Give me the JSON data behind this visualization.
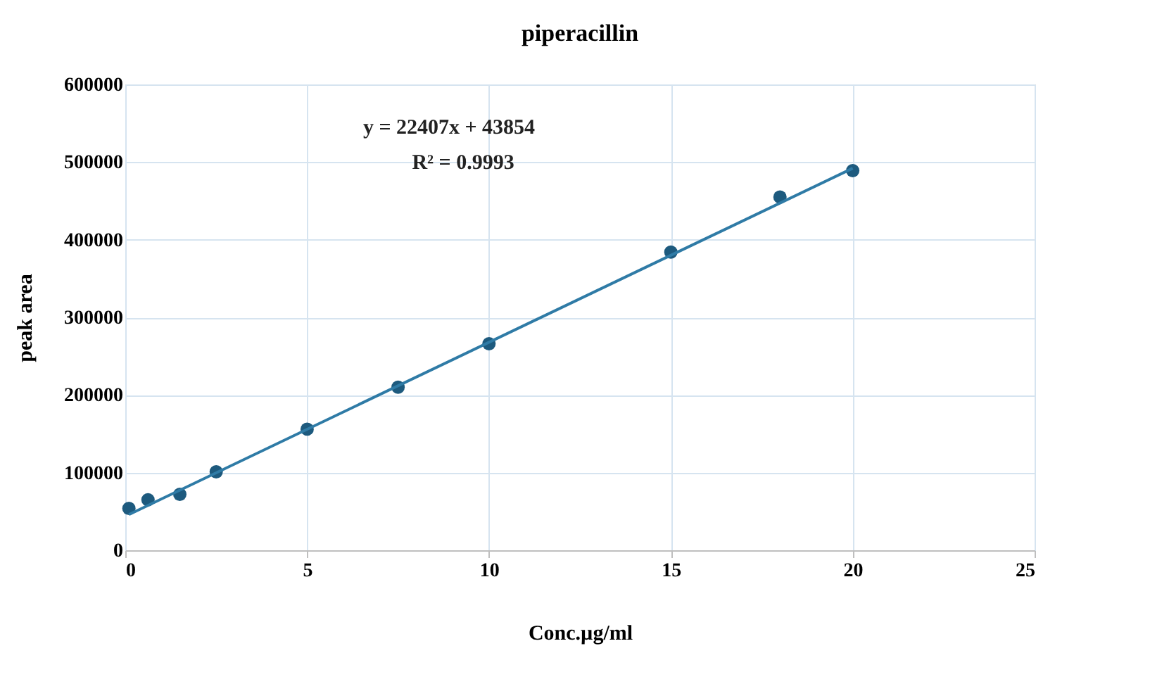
{
  "chart_data": {
    "type": "scatter",
    "title": "piperacillin",
    "xlabel": "Conc.µg/ml",
    "ylabel": "peak area",
    "x": [
      0.1,
      0.625,
      1.5,
      2.5,
      5,
      7.5,
      10,
      15,
      18,
      20
    ],
    "series": [
      {
        "color": "#1d5a7e",
        "marker": "circle",
        "values": [
          54000,
          65000,
          72000,
          101000,
          156000,
          210000,
          266000,
          384000,
          455000,
          489000
        ]
      },
      {
        "type": "line",
        "color": "#2f7ba6",
        "x": [
          0.1,
          20
        ],
        "values": [
          46000,
          492000
        ]
      }
    ],
    "annotations": [
      "y = 22407x + 43854",
      "R² = 0.9993"
    ],
    "xlim": [
      0,
      25
    ],
    "xticks": [
      0,
      5,
      10,
      15,
      20,
      25
    ],
    "ylim": [
      0,
      600000
    ],
    "yticks": [
      0,
      100000,
      200000,
      300000,
      400000,
      500000,
      600000
    ],
    "grid": true
  }
}
